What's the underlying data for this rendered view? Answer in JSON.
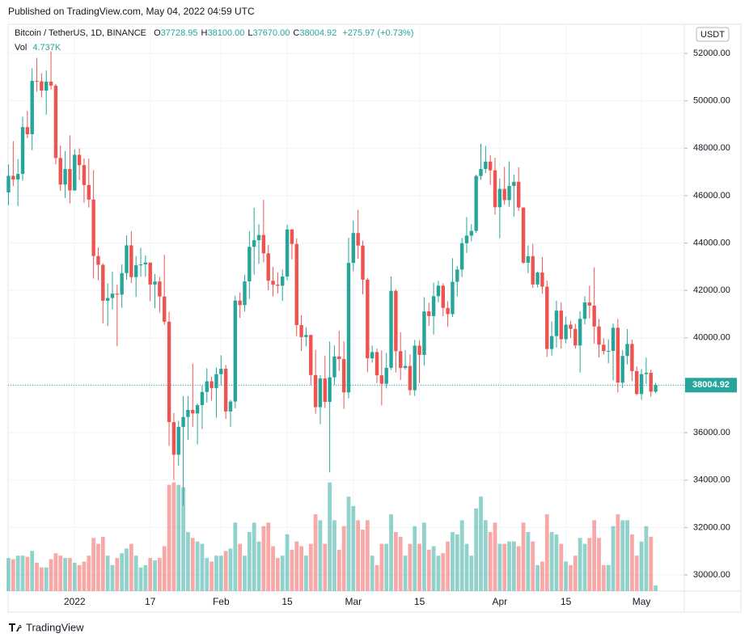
{
  "published": "Published on TradingView.com, May 04, 2022 04:59 UTC",
  "brand": "TradingView",
  "chart_data": {
    "type": "candlestick",
    "title": "Bitcoin / TetherUS, 1D, BINANCE",
    "quote": [
      {
        "key": "O",
        "value": "37728.95"
      },
      {
        "key": "H",
        "value": "38100.00"
      },
      {
        "key": "L",
        "value": "37670.00"
      },
      {
        "key": "C",
        "value": "38004.92"
      }
    ],
    "change": "+275.97 (+0.73%)",
    "axis_unit": "USDT",
    "up_color": "#26a69a",
    "down_color": "#ef5350",
    "grid": true,
    "ylim": [
      29318,
      53228
    ],
    "yticks": [
      {
        "value": 30000,
        "label": "30000.00"
      },
      {
        "value": 32000,
        "label": "32000.00"
      },
      {
        "value": 34000,
        "label": "34000.00"
      },
      {
        "value": 36000,
        "label": "36000.00"
      },
      {
        "value": 38000,
        "label": "38000.00"
      },
      {
        "value": 40000,
        "label": "40000.00"
      },
      {
        "value": 42000,
        "label": "42000.00"
      },
      {
        "value": 44000,
        "label": "44000.00"
      },
      {
        "value": 46000,
        "label": "46000.00"
      },
      {
        "value": 48000,
        "label": "48000.00"
      },
      {
        "value": 50000,
        "label": "50000.00"
      },
      {
        "value": 52000,
        "label": "52000.00"
      }
    ],
    "categories": [
      null,
      null,
      null,
      null,
      null,
      null,
      null,
      null,
      null,
      null,
      null,
      null,
      null,
      null,
      "2022",
      null,
      null,
      null,
      null,
      null,
      null,
      null,
      null,
      null,
      null,
      null,
      null,
      null,
      null,
      null,
      "17",
      null,
      null,
      null,
      null,
      null,
      null,
      null,
      null,
      null,
      null,
      null,
      null,
      null,
      null,
      "Feb",
      null,
      null,
      null,
      null,
      null,
      null,
      null,
      null,
      null,
      null,
      null,
      null,
      null,
      "15",
      null,
      null,
      null,
      null,
      null,
      null,
      null,
      null,
      null,
      null,
      null,
      null,
      null,
      "Mar",
      null,
      null,
      null,
      null,
      null,
      null,
      null,
      null,
      null,
      null,
      null,
      null,
      null,
      "15",
      null,
      null,
      null,
      null,
      null,
      null,
      null,
      null,
      null,
      null,
      null,
      null,
      null,
      null,
      null,
      null,
      "Apr",
      null,
      null,
      null,
      null,
      null,
      null,
      null,
      null,
      null,
      null,
      null,
      null,
      null,
      "15",
      null,
      null,
      null,
      null,
      null,
      null,
      null,
      null,
      null,
      null,
      null,
      null,
      null,
      null,
      null,
      "May",
      null,
      null,
      null
    ],
    "open": [
      46133,
      46834,
      46681,
      46914,
      48889,
      48588,
      50838,
      50821,
      50429,
      50809,
      50640,
      47588,
      46464,
      47120,
      46216,
      47722,
      47286,
      46446,
      45832,
      43451,
      43082,
      41566,
      41679,
      41864,
      41822,
      42729,
      43902,
      42561,
      43060,
      43097,
      43177,
      42250,
      42375,
      41744,
      40681,
      36445,
      35071,
      36244,
      36660,
      36958,
      36810,
      37160,
      37716,
      38166,
      37881,
      38466,
      38694,
      36896,
      37311,
      41574,
      41382,
      42380,
      43840,
      44118,
      44338,
      43565,
      42407,
      42244,
      42197,
      42586,
      44575,
      43961,
      40538,
      40031,
      40122,
      38431,
      37075,
      38286,
      37296,
      38332,
      39214,
      39105,
      37699,
      43160,
      44421,
      43892,
      42454,
      39137,
      39400,
      38419,
      38062,
      38737,
      41982,
      39437,
      38730,
      38814,
      37792,
      39671,
      39280,
      41114,
      40917,
      41757,
      42201,
      41262,
      41002,
      42364,
      42882,
      43991,
      44313,
      44511,
      46827,
      47122,
      47434,
      47067,
      45510,
      46283,
      45811,
      46407,
      46580,
      45497,
      43170,
      43445,
      42252,
      42753,
      42158,
      39530,
      40074,
      41147,
      39942,
      40552,
      40378,
      39678,
      40801,
      41493,
      41358,
      40480,
      39709,
      39441,
      39450,
      40426,
      38112,
      39235,
      39742,
      38596,
      37630,
      38468,
      38525,
      37728.95
    ],
    "high": [
      47313,
      48300,
      47537,
      49328,
      49576,
      51375,
      51810,
      51156,
      51280,
      52088,
      50704,
      48119,
      47879,
      48548,
      47954,
      47990,
      47570,
      47557,
      47070,
      43816,
      43145,
      42300,
      42786,
      42248,
      43100,
      44322,
      44500,
      43448,
      43800,
      43475,
      43176,
      42691,
      42568,
      43505,
      41100,
      36835,
      36499,
      37550,
      37545,
      38919,
      37234,
      38000,
      38720,
      38360,
      38744,
      39265,
      38855,
      37387,
      41772,
      41913,
      42656,
      44500,
      45492,
      44799,
      45821,
      43920,
      43000,
      42760,
      42876,
      44770,
      44583,
      44200,
      40959,
      40444,
      40125,
      39494,
      38429,
      39249,
      39843,
      39683,
      40295,
      39855,
      44225,
      44949,
      45400,
      44101,
      42527,
      39680,
      39547,
      39474,
      39363,
      42594,
      42039,
      40236,
      39486,
      39310,
      39914,
      39887,
      41718,
      41478,
      42325,
      42400,
      42296,
      41544,
      43361,
      43025,
      44220,
      45094,
      44792,
      46890,
      48190,
      48096,
      47700,
      47600,
      46720,
      47213,
      47444,
      46890,
      47200,
      45507,
      43900,
      43970,
      42800,
      43410,
      42414,
      40699,
      41561,
      41500,
      40900,
      40709,
      40595,
      41116,
      41760,
      42199,
      42976,
      40795,
      39980,
      39940,
      40617,
      40797,
      39474,
      40372,
      39925,
      38795,
      38675,
      39167,
      38651,
      38100
    ],
    "low": [
      45598,
      46406,
      45558,
      46630,
      48421,
      47920,
      50384,
      50142,
      49412,
      50473,
      47313,
      46201,
      45900,
      45678,
      46208,
      46654,
      45696,
      45500,
      42500,
      42430,
      40610,
      40501,
      41200,
      39650,
      41268,
      42450,
      42311,
      41725,
      42574,
      42581,
      41540,
      41250,
      41074,
      40553,
      35440,
      34008,
      34601,
      32917,
      35701,
      36234,
      35507,
      36155,
      37268,
      37351,
      36632,
      38000,
      36586,
      36250,
      37026,
      40843,
      41116,
      41645,
      42666,
      43117,
      43187,
      42008,
      41748,
      41870,
      41550,
      42427,
      43311,
      40073,
      39450,
      39639,
      38000,
      36800,
      36350,
      37036,
      34322,
      38014,
      38600,
      37000,
      37450,
      42809,
      43334,
      41832,
      38550,
      38954,
      38088,
      37155,
      37867,
      38656,
      38539,
      38223,
      38660,
      37578,
      37555,
      38098,
      38828,
      40500,
      40135,
      41499,
      40911,
      40467,
      40875,
      41751,
      42566,
      43579,
      44071,
      44422,
      46663,
      46950,
      46445,
      45200,
      44200,
      45620,
      45530,
      45118,
      45353,
      43121,
      42727,
      42107,
      42125,
      41868,
      39200,
      39254,
      39588,
      39551,
      39766,
      39991,
      39546,
      38536,
      40571,
      40820,
      39751,
      39177,
      39285,
      38929,
      38200,
      37702,
      37881,
      38881,
      38175,
      37578,
      37386,
      38052,
      37517,
      37670
    ],
    "close": [
      46834,
      46681,
      46914,
      48889,
      48588,
      50838,
      50821,
      50429,
      50809,
      50640,
      47588,
      46464,
      47120,
      46216,
      47722,
      47286,
      46446,
      45832,
      43451,
      43082,
      41566,
      41679,
      41864,
      41822,
      42729,
      43902,
      42561,
      43060,
      43097,
      43177,
      42250,
      42375,
      41744,
      40681,
      36445,
      35071,
      36244,
      36660,
      36958,
      36810,
      37160,
      37716,
      38166,
      37881,
      38466,
      38694,
      36896,
      37311,
      41574,
      41382,
      42380,
      43840,
      44118,
      44338,
      43565,
      42407,
      42244,
      42197,
      42586,
      44575,
      43961,
      40538,
      40031,
      40122,
      38431,
      37075,
      38286,
      37296,
      38332,
      39214,
      39105,
      37699,
      43160,
      44421,
      43892,
      42454,
      39137,
      39400,
      38419,
      38062,
      38737,
      41982,
      39437,
      38730,
      38814,
      37792,
      39671,
      39280,
      41114,
      40917,
      41757,
      42201,
      41262,
      41002,
      42364,
      42882,
      43991,
      44313,
      44511,
      46827,
      47122,
      47434,
      47067,
      45510,
      46283,
      45811,
      46407,
      46580,
      45497,
      43170,
      43445,
      42252,
      42753,
      42158,
      39530,
      40074,
      41147,
      39942,
      40552,
      40378,
      39678,
      40801,
      41493,
      41358,
      40480,
      39709,
      39441,
      39450,
      40426,
      38112,
      39235,
      39742,
      38596,
      37630,
      38468,
      38525,
      37728.95,
      38004.92
    ],
    "volume": {
      "name": "Vol",
      "last_label": "4.737K",
      "values": [
        28000,
        27000,
        30000,
        30000,
        29000,
        34000,
        24000,
        20000,
        20000,
        27000,
        32000,
        30000,
        28000,
        28000,
        24000,
        22000,
        25000,
        30000,
        45000,
        40000,
        46000,
        30000,
        22000,
        28000,
        32000,
        36000,
        40000,
        30000,
        20000,
        22000,
        28000,
        26000,
        28000,
        38000,
        90000,
        92000,
        90000,
        88000,
        50000,
        45000,
        42000,
        40000,
        28000,
        25000,
        30000,
        30000,
        34000,
        36000,
        58000,
        40000,
        30000,
        50000,
        58000,
        42000,
        55000,
        58000,
        38000,
        28000,
        30000,
        48000,
        35000,
        42000,
        38000,
        30000,
        40000,
        65000,
        60000,
        40000,
        92000,
        60000,
        35000,
        55000,
        80000,
        72000,
        60000,
        52000,
        60000,
        30000,
        22000,
        40000,
        40000,
        65000,
        50000,
        46000,
        30000,
        40000,
        55000,
        40000,
        58000,
        35000,
        38000,
        30000,
        32000,
        42000,
        50000,
        48000,
        60000,
        40000,
        30000,
        70000,
        80000,
        60000,
        50000,
        58000,
        40000,
        40000,
        42000,
        42000,
        38000,
        58000,
        50000,
        42000,
        22000,
        25000,
        65000,
        50000,
        48000,
        40000,
        25000,
        22000,
        30000,
        45000,
        40000,
        45000,
        60000,
        45000,
        22000,
        22000,
        55000,
        65000,
        60000,
        60000,
        48000,
        30000,
        42000,
        55000,
        46000,
        4737
      ]
    }
  }
}
